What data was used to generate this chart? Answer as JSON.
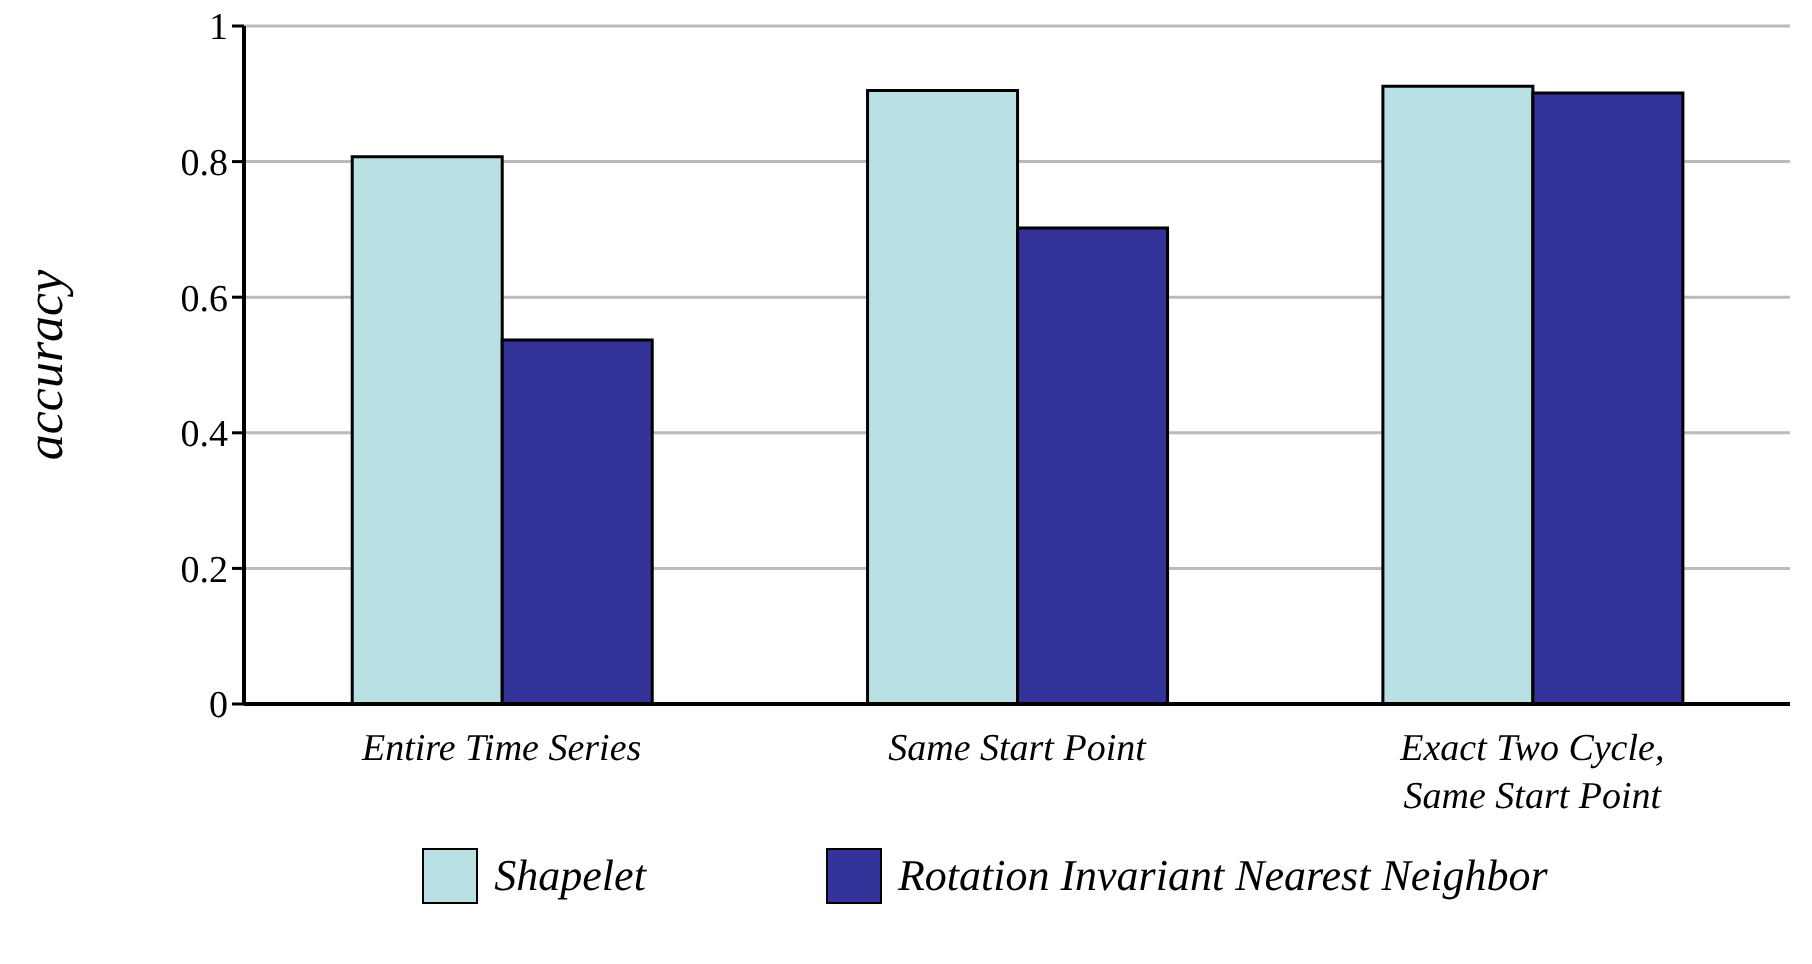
{
  "chart_data": {
    "type": "bar",
    "ylabel": "accuracy",
    "categories": [
      "Entire Time Series",
      "Same Start Point",
      "Exact Two Cycle, Same Start Point"
    ],
    "series": [
      {
        "name": "Shapelet",
        "color": "#b9e0e3",
        "values": [
          0.807,
          0.905,
          0.911
        ]
      },
      {
        "name": "Rotation Invariant Nearest Neighbor",
        "color": "#343399",
        "values": [
          0.537,
          0.702,
          0.901
        ]
      }
    ],
    "ylim": [
      0,
      1
    ],
    "yticks": [
      0,
      0.2,
      0.4,
      0.6,
      0.8,
      1
    ],
    "grid": "y",
    "legend": "bottom"
  }
}
